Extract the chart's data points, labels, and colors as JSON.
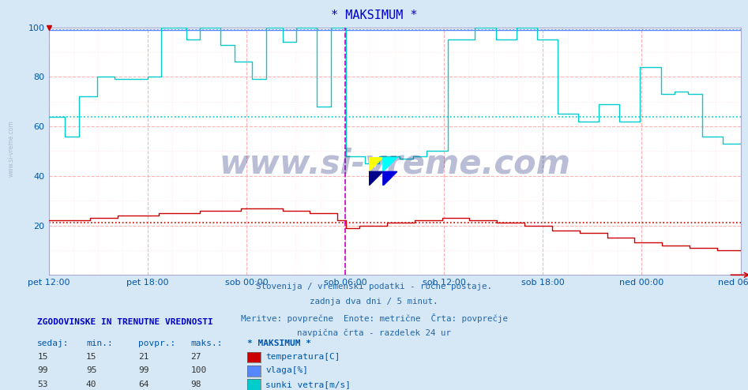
{
  "title": "* MAKSIMUM *",
  "title_color": "#0000cc",
  "bg_color": "#d6e8f5",
  "plot_bg_color": "#ffffff",
  "grid_major_color": "#ffaaaa",
  "grid_minor_color": "#ffdddd",
  "tick_color": "#0055aa",
  "vline_color": "#cc00cc",
  "vline_x": 0.75,
  "watermark_text": "www.si-vreme.com",
  "side_text": "www.si-vreme.com",
  "subtitle_lines": [
    "Slovenija / vremenski podatki - ročne postaje.",
    "zadnja dva dni / 5 minut.",
    "Meritve: povprečne  Enote: metrične  Črta: povprečje",
    "navpična črta - razdelek 24 ur"
  ],
  "xtick_labels": [
    "pet 12:00",
    "pet 18:00",
    "sob 00:00",
    "sob 06:00",
    "sob 12:00",
    "sob 18:00",
    "ned 00:00",
    "ned 06:00"
  ],
  "xtick_pos": [
    0.0,
    0.25,
    0.5,
    0.75,
    1.0,
    1.25,
    1.5,
    1.75
  ],
  "xmax": 1.75,
  "ymin": 0,
  "ymax": 100,
  "yticks": [
    20,
    40,
    60,
    80,
    100
  ],
  "avg_temp": 21,
  "avg_vlaga": 99,
  "avg_sunki": 64,
  "temp_color": "#cc0000",
  "vlaga_color": "#5588ff",
  "sunki_color": "#00cccc",
  "table_header": "ZGODOVINSKE IN TRENUTNE VREDNOSTI",
  "col_headers": [
    "sedaj:",
    "min.:",
    "povpr.:",
    "maks.:",
    "* MAKSIMUM *"
  ],
  "rows": [
    [
      15,
      15,
      21,
      27
    ],
    [
      99,
      95,
      99,
      100
    ],
    [
      53,
      40,
      64,
      98
    ]
  ],
  "row_labels": [
    "temperatura[C]",
    "vlaga[%]",
    "sunki vetra[m/s]"
  ],
  "row_colors": [
    "#cc0000",
    "#5588ff",
    "#00cccc"
  ]
}
